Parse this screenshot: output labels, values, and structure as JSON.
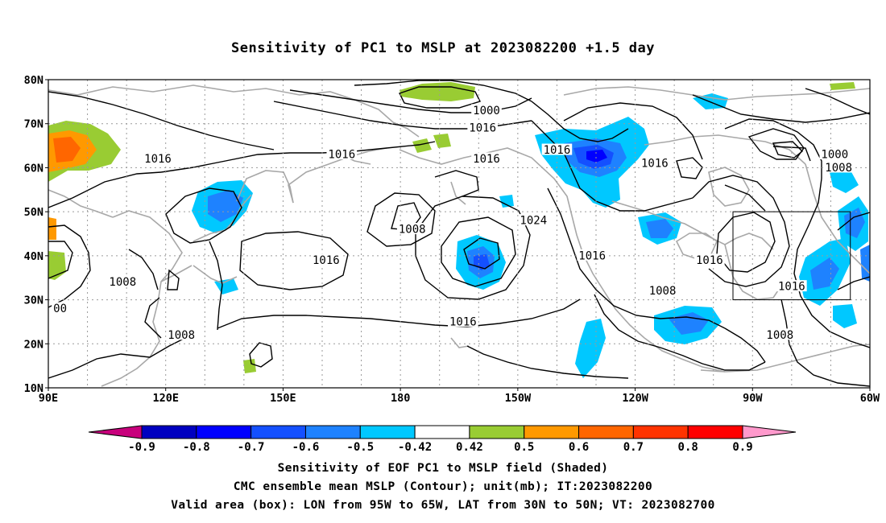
{
  "title": "Sensitivity of PC1 to MSLP at 2023082200 +1.5 day",
  "captions": [
    "Sensitivity of EOF PC1 to MSLP field (Shaded)",
    "CMC ensemble mean MSLP (Contour); unit(mb); IT:2023082200",
    "Valid area (box): LON from 95W to 65W, LAT from 30N to 50N; VT: 2023082700"
  ],
  "axes": {
    "lat_labels": [
      "80N",
      "70N",
      "60N",
      "50N",
      "40N",
      "30N",
      "20N",
      "10N"
    ],
    "lon_labels": [
      "90E",
      "120E",
      "150E",
      "180",
      "150W",
      "120W",
      "90W",
      "60W"
    ]
  },
  "contour_labels": [
    {
      "text": "1000",
      "lon": -158,
      "lat": 73
    },
    {
      "text": "1016",
      "lon": -159,
      "lat": 69
    },
    {
      "text": "1016",
      "lon": 165,
      "lat": 63
    },
    {
      "text": "1016",
      "lon": -140,
      "lat": 64
    },
    {
      "text": "1016",
      "lon": -158,
      "lat": 62
    },
    {
      "text": "1016",
      "lon": 118,
      "lat": 62
    },
    {
      "text": "1016",
      "lon": -115,
      "lat": 61
    },
    {
      "text": "1000",
      "lon": -69,
      "lat": 63
    },
    {
      "text": "1008",
      "lon": -68,
      "lat": 60
    },
    {
      "text": "1024",
      "lon": -146,
      "lat": 48
    },
    {
      "text": "1008",
      "lon": -177,
      "lat": 46
    },
    {
      "text": "1016",
      "lon": 161,
      "lat": 39
    },
    {
      "text": "1016",
      "lon": -131,
      "lat": 40
    },
    {
      "text": "1016",
      "lon": -101,
      "lat": 39
    },
    {
      "text": "1016",
      "lon": -80,
      "lat": 33
    },
    {
      "text": "1008",
      "lon": 109,
      "lat": 34
    },
    {
      "text": "1008",
      "lon": -113,
      "lat": 32
    },
    {
      "text": "00",
      "lon": 93,
      "lat": 28
    },
    {
      "text": "1016",
      "lon": -164,
      "lat": 25
    },
    {
      "text": "1008",
      "lon": 124,
      "lat": 22
    },
    {
      "text": "1008",
      "lon": -83,
      "lat": 22
    }
  ],
  "legend": {
    "labels": [
      "-0.9",
      "-0.8",
      "-0.7",
      "-0.6",
      "-0.5",
      "-0.42",
      "0.42",
      "0.5",
      "0.6",
      "0.7",
      "0.8",
      "0.9"
    ],
    "colors": [
      "#c8007c",
      "#0000c0",
      "#0000ff",
      "#1450ff",
      "#1e82ff",
      "#00c8ff",
      "#ffffff",
      "#99cc33",
      "#ff9900",
      "#ff6600",
      "#ff3300",
      "#ff0000",
      "#ff99cc"
    ]
  },
  "valid_box": {
    "lon_min": -95,
    "lon_max": -65,
    "lat_min": 30,
    "lat_max": 50
  },
  "colors": {
    "contour": "#000000",
    "coast": "#a8a8a8",
    "grid": "#9a9a9a"
  }
}
